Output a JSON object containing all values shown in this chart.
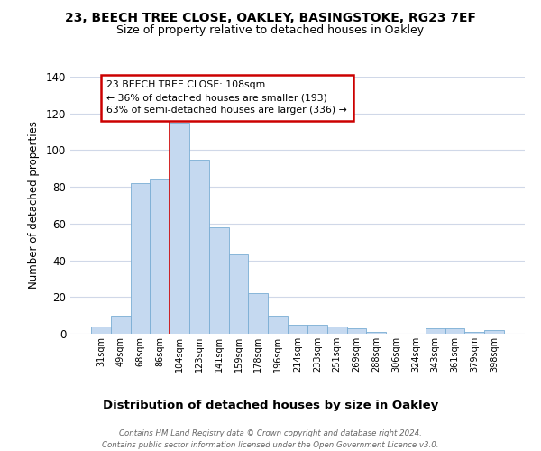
{
  "title_line1": "23, BEECH TREE CLOSE, OAKLEY, BASINGSTOKE, RG23 7EF",
  "title_line2": "Size of property relative to detached houses in Oakley",
  "xlabel": "Distribution of detached houses by size in Oakley",
  "ylabel": "Number of detached properties",
  "categories": [
    "31sqm",
    "49sqm",
    "68sqm",
    "86sqm",
    "104sqm",
    "123sqm",
    "141sqm",
    "159sqm",
    "178sqm",
    "196sqm",
    "214sqm",
    "233sqm",
    "251sqm",
    "269sqm",
    "288sqm",
    "306sqm",
    "324sqm",
    "343sqm",
    "361sqm",
    "379sqm",
    "398sqm"
  ],
  "values": [
    4,
    10,
    82,
    84,
    115,
    95,
    58,
    43,
    22,
    10,
    5,
    5,
    4,
    3,
    1,
    0,
    0,
    3,
    3,
    1,
    2
  ],
  "bar_color": "#c5d9f0",
  "bar_edgecolor": "#7aadd4",
  "vline_index": 4,
  "vline_color": "#cc0000",
  "annotation_title": "23 BEECH TREE CLOSE: 108sqm",
  "annotation_line2": "← 36% of detached houses are smaller (193)",
  "annotation_line3": "63% of semi-detached houses are larger (336) →",
  "annotation_box_edgecolor": "#cc0000",
  "annotation_box_facecolor": "#ffffff",
  "ylim": [
    0,
    140
  ],
  "yticks": [
    0,
    20,
    40,
    60,
    80,
    100,
    120,
    140
  ],
  "footer_line1": "Contains HM Land Registry data © Crown copyright and database right 2024.",
  "footer_line2": "Contains public sector information licensed under the Open Government Licence v3.0.",
  "background_color": "#ffffff",
  "grid_color": "#d0d8e8"
}
